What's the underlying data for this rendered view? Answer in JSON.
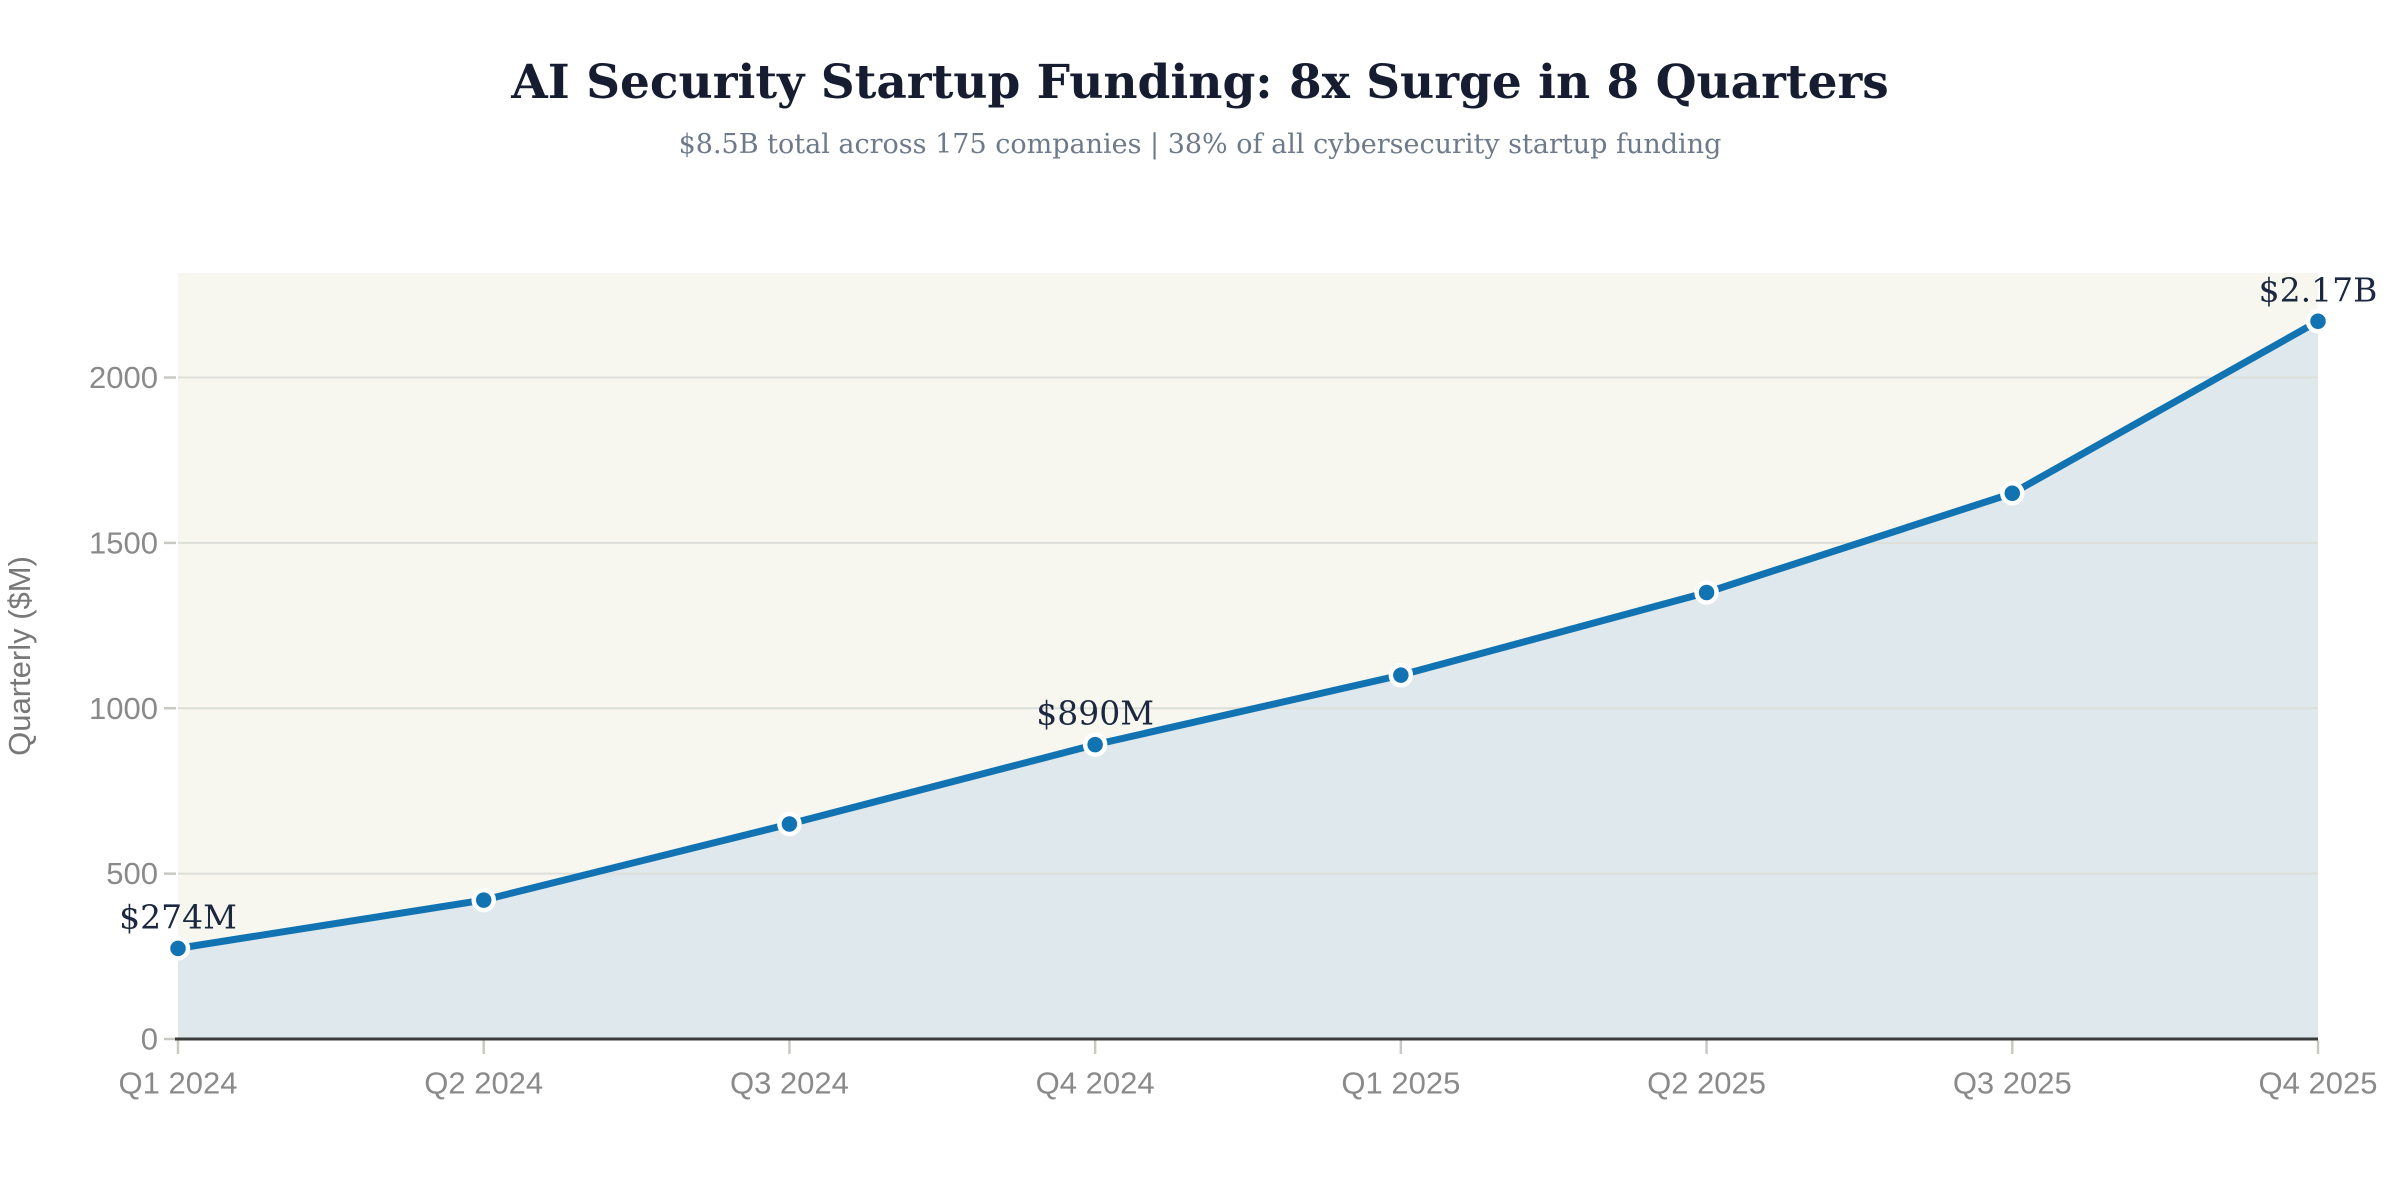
{
  "header": {
    "title": "AI Security Startup Funding: 8x Surge in 8 Quarters",
    "subtitle": "$8.5B total across 175 companies | 38% of all cybersecurity startup funding"
  },
  "chart_data": {
    "type": "area",
    "title": "AI Security Startup Funding: 8x Surge in 8 Quarters",
    "subtitle": "$8.5B total across 175 companies | 38% of all cybersecurity startup funding",
    "categories": [
      "Q1 2024",
      "Q2 2024",
      "Q3 2024",
      "Q4 2024",
      "Q1 2025",
      "Q2 2025",
      "Q3 2025",
      "Q4 2025"
    ],
    "values": [
      274,
      420,
      650,
      890,
      1100,
      1350,
      1650,
      2170
    ],
    "xlabel": "",
    "ylabel": "Quarterly ($M)",
    "ylim": [
      0,
      2316
    ],
    "yticks": [
      0,
      500,
      1000,
      1500,
      2000
    ],
    "grid": true,
    "legend": false,
    "annotations": [
      {
        "index": 0,
        "label": "$274M"
      },
      {
        "index": 3,
        "label": "$890M"
      },
      {
        "index": 7,
        "label": "$2.17B"
      }
    ]
  },
  "colors": {
    "line": "#1273b3",
    "fill": "#dfe8ec",
    "plot_bg": "#f7f7f0",
    "grid": "#dddfd9",
    "axis": "#3c3c3c",
    "tick": "#c9c9c3",
    "tick_label": "#8a8a8a",
    "axis_title": "#787878",
    "title": "#161d31",
    "subtitle": "#6e7a8a",
    "annotation": "#1b2840",
    "point_stroke": "#ffffff"
  }
}
